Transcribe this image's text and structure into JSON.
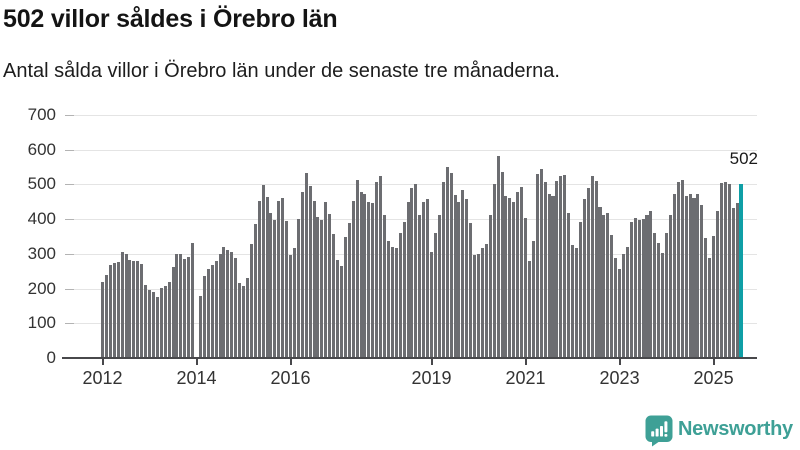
{
  "header": {
    "title": "502 villor såldes i Örebro län",
    "subtitle": "Antal sålda villor i Örebro län under de senaste tre månaderna."
  },
  "chart_data": {
    "type": "bar",
    "title": "502 villor såldes i Örebro län",
    "subtitle": "Antal sålda villor i Örebro län under de senaste tre månaderna.",
    "x_unit": "month",
    "start_month": "2012-01",
    "end_month": "2025-08",
    "ylim": [
      0,
      700
    ],
    "y_ticks": [
      0,
      100,
      200,
      300,
      400,
      500,
      600,
      700
    ],
    "x_ticks": [
      {
        "label": "2012",
        "month_index": 0
      },
      {
        "label": "2014",
        "month_index": 24
      },
      {
        "label": "2016",
        "month_index": 48
      },
      {
        "label": "2019",
        "month_index": 84
      },
      {
        "label": "2021",
        "month_index": 108
      },
      {
        "label": "2023",
        "month_index": 132
      },
      {
        "label": "2025",
        "month_index": 156
      }
    ],
    "grid": true,
    "legend": "none",
    "bar_color": "#6c6d71",
    "highlight_color": "#0f9fa6",
    "missing_months": [
      "2014-01"
    ],
    "annotation": {
      "label": "502",
      "value": 502,
      "month": "2025-08"
    },
    "series": [
      {
        "name": "Antal sålda villor, rullande tre månader",
        "by_year": [
          {
            "year": 2012,
            "values": [
              220,
              239,
              268,
              275,
              276,
              306,
              299,
              282,
              280,
              278,
              271,
              210
            ]
          },
          {
            "year": 2013,
            "values": [
              196,
              191,
              177,
              201,
              206,
              220,
              261,
              300,
              300,
              285,
              292,
              330
            ]
          },
          {
            "year": 2014,
            "values": [
              null,
              180,
              235,
              255,
              268,
              278,
              300,
              320,
              310,
              306,
              287,
              215
            ]
          },
          {
            "year": 2015,
            "values": [
              207,
              230,
              328,
              386,
              453,
              499,
              465,
              417,
              398,
              451,
              462,
              396
            ]
          },
          {
            "year": 2016,
            "values": [
              297,
              316,
              400,
              477,
              532,
              496,
              453,
              405,
              398,
              450,
              415,
              357
            ]
          },
          {
            "year": 2017,
            "values": [
              282,
              266,
              350,
              388,
              452,
              513,
              479,
              472,
              450,
              446,
              508,
              523
            ]
          },
          {
            "year": 2018,
            "values": [
              412,
              337,
              321,
              316,
              361,
              393,
              450,
              491,
              500,
              412,
              450,
              457
            ]
          },
          {
            "year": 2019,
            "values": [
              306,
              359,
              412,
              508,
              551,
              534,
              470,
              449,
              484,
              458,
              388,
              297
            ]
          },
          {
            "year": 2020,
            "values": [
              299,
              316,
              328,
              412,
              500,
              583,
              537,
              468,
              462,
              450,
              477,
              494
            ]
          },
          {
            "year": 2021,
            "values": [
              402,
              280,
              337,
              529,
              545,
              508,
              472,
              468,
              510,
              525,
              527,
              417
            ]
          },
          {
            "year": 2022,
            "values": [
              326,
              316,
              391,
              457,
              489,
              523,
              510,
              436,
              412,
              417,
              354,
              287
            ]
          },
          {
            "year": 2023,
            "values": [
              256,
              299,
              321,
              393,
              402,
              398,
              400,
              412,
              424,
              359,
              330,
              302
            ]
          },
          {
            "year": 2024,
            "values": [
              361,
              412,
              472,
              506,
              513,
              468,
              472,
              462,
              472,
              441,
              345,
              287
            ]
          },
          {
            "year": 2025,
            "values": [
              352,
              424,
              503,
              506,
              500,
              431,
              446,
              502
            ]
          }
        ]
      }
    ]
  },
  "footer": {
    "brand": "Newsworthy",
    "brand_color": "#3ea096"
  }
}
